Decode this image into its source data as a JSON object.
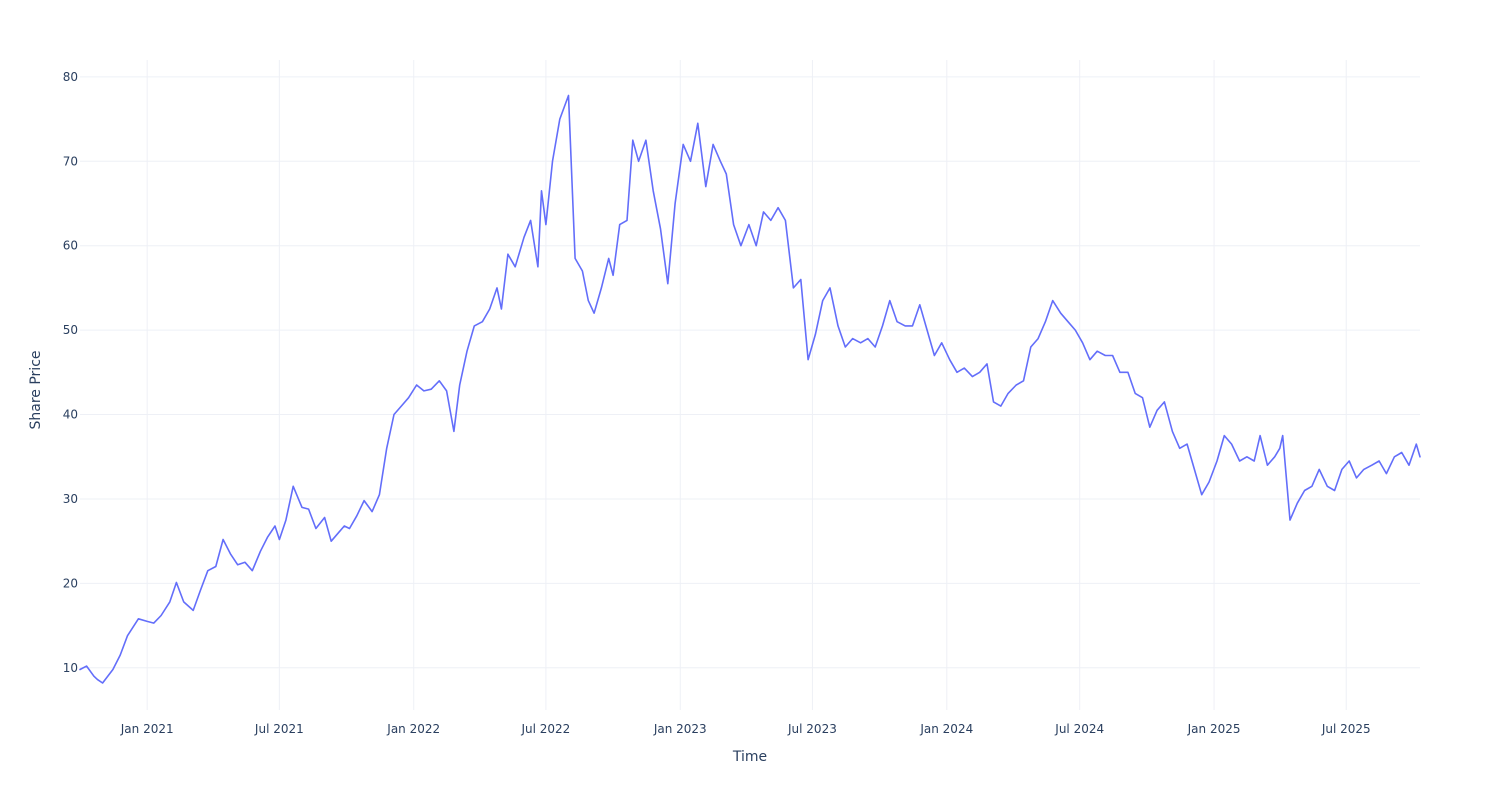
{
  "chart_data": {
    "type": "line",
    "title": "",
    "xlabel": "Time",
    "ylabel": "Share Price",
    "xlim": [
      "2020-10-01",
      "2025-10-10"
    ],
    "ylim": [
      5,
      82
    ],
    "grid": true,
    "legend": "none",
    "x_ticks": [
      {
        "date": "2021-01-01",
        "label": "Jan 2021"
      },
      {
        "date": "2021-07-01",
        "label": "Jul 2021"
      },
      {
        "date": "2022-01-01",
        "label": "Jan 2022"
      },
      {
        "date": "2022-07-01",
        "label": "Jul 2022"
      },
      {
        "date": "2023-01-01",
        "label": "Jan 2023"
      },
      {
        "date": "2023-07-01",
        "label": "Jul 2023"
      },
      {
        "date": "2024-01-01",
        "label": "Jan 2024"
      },
      {
        "date": "2024-07-01",
        "label": "Jul 2024"
      },
      {
        "date": "2025-01-01",
        "label": "Jan 2025"
      },
      {
        "date": "2025-07-01",
        "label": "Jul 2025"
      }
    ],
    "y_ticks": [
      10,
      20,
      30,
      40,
      50,
      60,
      70,
      80
    ],
    "series": [
      {
        "color": "#636efa",
        "x": [
          "2020-10-01",
          "2020-10-10",
          "2020-10-20",
          "2020-10-25",
          "2020-11-01",
          "2020-11-15",
          "2020-11-25",
          "2020-12-05",
          "2020-12-20",
          "2021-01-01",
          "2021-01-10",
          "2021-01-20",
          "2021-02-01",
          "2021-02-10",
          "2021-02-20",
          "2021-03-05",
          "2021-03-15",
          "2021-03-25",
          "2021-04-05",
          "2021-04-15",
          "2021-04-25",
          "2021-05-05",
          "2021-05-15",
          "2021-05-25",
          "2021-06-05",
          "2021-06-15",
          "2021-06-25",
          "2021-07-01",
          "2021-07-10",
          "2021-07-20",
          "2021-08-01",
          "2021-08-10",
          "2021-08-20",
          "2021-09-01",
          "2021-09-10",
          "2021-09-20",
          "2021-09-28",
          "2021-10-05",
          "2021-10-15",
          "2021-10-25",
          "2021-11-05",
          "2021-11-15",
          "2021-11-25",
          "2021-12-05",
          "2021-12-15",
          "2021-12-25",
          "2022-01-05",
          "2022-01-15",
          "2022-01-25",
          "2022-02-05",
          "2022-02-15",
          "2022-02-25",
          "2022-03-05",
          "2022-03-15",
          "2022-03-25",
          "2022-04-05",
          "2022-04-15",
          "2022-04-25",
          "2022-05-01",
          "2022-05-10",
          "2022-05-20",
          "2022-06-01",
          "2022-06-10",
          "2022-06-20",
          "2022-06-25",
          "2022-07-01",
          "2022-07-10",
          "2022-07-20",
          "2022-08-01",
          "2022-08-10",
          "2022-08-20",
          "2022-08-28",
          "2022-09-05",
          "2022-09-15",
          "2022-09-25",
          "2022-10-01",
          "2022-10-10",
          "2022-10-20",
          "2022-10-28",
          "2022-11-05",
          "2022-11-15",
          "2022-11-25",
          "2022-12-05",
          "2022-12-15",
          "2022-12-25",
          "2023-01-05",
          "2023-01-15",
          "2023-01-25",
          "2023-02-05",
          "2023-02-15",
          "2023-02-25",
          "2023-03-05",
          "2023-03-15",
          "2023-03-25",
          "2023-04-05",
          "2023-04-15",
          "2023-04-25",
          "2023-05-05",
          "2023-05-15",
          "2023-05-25",
          "2023-06-05",
          "2023-06-15",
          "2023-06-25",
          "2023-07-05",
          "2023-07-15",
          "2023-07-25",
          "2023-08-05",
          "2023-08-15",
          "2023-08-25",
          "2023-09-05",
          "2023-09-15",
          "2023-09-25",
          "2023-10-05",
          "2023-10-15",
          "2023-10-25",
          "2023-11-05",
          "2023-11-15",
          "2023-11-25",
          "2023-12-05",
          "2023-12-15",
          "2023-12-25",
          "2024-01-05",
          "2024-01-15",
          "2024-01-25",
          "2024-02-05",
          "2024-02-15",
          "2024-02-25",
          "2024-03-05",
          "2024-03-15",
          "2024-03-25",
          "2024-04-05",
          "2024-04-15",
          "2024-04-25",
          "2024-05-05",
          "2024-05-15",
          "2024-05-25",
          "2024-06-05",
          "2024-06-15",
          "2024-06-25",
          "2024-07-05",
          "2024-07-15",
          "2024-07-25",
          "2024-08-05",
          "2024-08-15",
          "2024-08-25",
          "2024-09-05",
          "2024-09-15",
          "2024-09-25",
          "2024-10-05",
          "2024-10-15",
          "2024-10-25",
          "2024-11-05",
          "2024-11-15",
          "2024-11-25",
          "2024-12-05",
          "2024-12-15",
          "2024-12-25",
          "2025-01-05",
          "2025-01-15",
          "2025-01-25",
          "2025-02-05",
          "2025-02-15",
          "2025-02-25",
          "2025-03-05",
          "2025-03-15",
          "2025-03-25",
          "2025-04-01",
          "2025-04-05",
          "2025-04-15",
          "2025-04-25",
          "2025-05-05",
          "2025-05-15",
          "2025-05-25",
          "2025-06-05",
          "2025-06-15",
          "2025-06-25",
          "2025-07-05",
          "2025-07-15",
          "2025-07-25",
          "2025-08-05",
          "2025-08-15",
          "2025-08-25",
          "2025-09-05",
          "2025-09-15",
          "2025-09-25",
          "2025-10-05",
          "2025-10-10"
        ],
        "y": [
          9.8,
          10.2,
          9.0,
          8.6,
          8.2,
          9.8,
          11.5,
          13.8,
          15.8,
          15.5,
          15.3,
          16.2,
          17.8,
          20.1,
          17.8,
          16.8,
          19.2,
          21.5,
          22.0,
          25.2,
          23.5,
          22.2,
          22.5,
          21.5,
          23.8,
          25.5,
          26.8,
          25.2,
          27.5,
          31.5,
          29.0,
          28.8,
          26.5,
          27.8,
          25.0,
          26.0,
          26.8,
          26.5,
          28.0,
          29.8,
          28.5,
          30.5,
          36.0,
          40.0,
          41.0,
          42.0,
          43.5,
          42.8,
          43.0,
          44.0,
          42.8,
          38.0,
          43.5,
          47.5,
          50.5,
          51.0,
          52.5,
          55.0,
          52.5,
          59.0,
          57.5,
          61.0,
          63.0,
          57.5,
          66.5,
          62.5,
          70.0,
          75.0,
          77.8,
          58.5,
          57.0,
          53.5,
          52.0,
          55.0,
          58.5,
          56.5,
          62.5,
          63.0,
          72.5,
          70.0,
          72.5,
          66.5,
          62.0,
          55.5,
          65.0,
          72.0,
          70.0,
          74.5,
          67.0,
          72.0,
          70.0,
          68.5,
          62.5,
          60.0,
          62.5,
          60.0,
          64.0,
          63.0,
          64.5,
          63.0,
          55.0,
          56.0,
          46.5,
          49.5,
          53.5,
          55.0,
          50.5,
          48.0,
          49.0,
          48.5,
          49.0,
          48.0,
          50.5,
          53.5,
          51.0,
          50.5,
          50.5,
          53.0,
          50.0,
          47.0,
          48.5,
          46.5,
          45.0,
          45.5,
          44.5,
          45.0,
          46.0,
          41.5,
          41.0,
          42.5,
          43.5,
          44.0,
          48.0,
          49.0,
          51.0,
          53.5,
          52.0,
          51.0,
          50.0,
          48.5,
          46.5,
          47.5,
          47.0,
          47.0,
          45.0,
          45.0,
          42.5,
          42.0,
          38.5,
          40.5,
          41.5,
          38.0,
          36.0,
          36.5,
          33.5,
          30.5,
          32.0,
          34.5,
          37.5,
          36.5,
          34.5,
          35.0,
          34.5,
          37.5,
          34.0,
          35.0,
          36.0,
          37.5,
          27.5,
          29.5,
          31.0,
          31.5,
          33.5,
          31.5,
          31.0,
          33.5,
          34.5,
          32.5,
          33.5,
          34.0,
          34.5,
          33.0,
          35.0,
          35.5,
          34.0,
          36.5,
          35.0
        ]
      }
    ]
  }
}
